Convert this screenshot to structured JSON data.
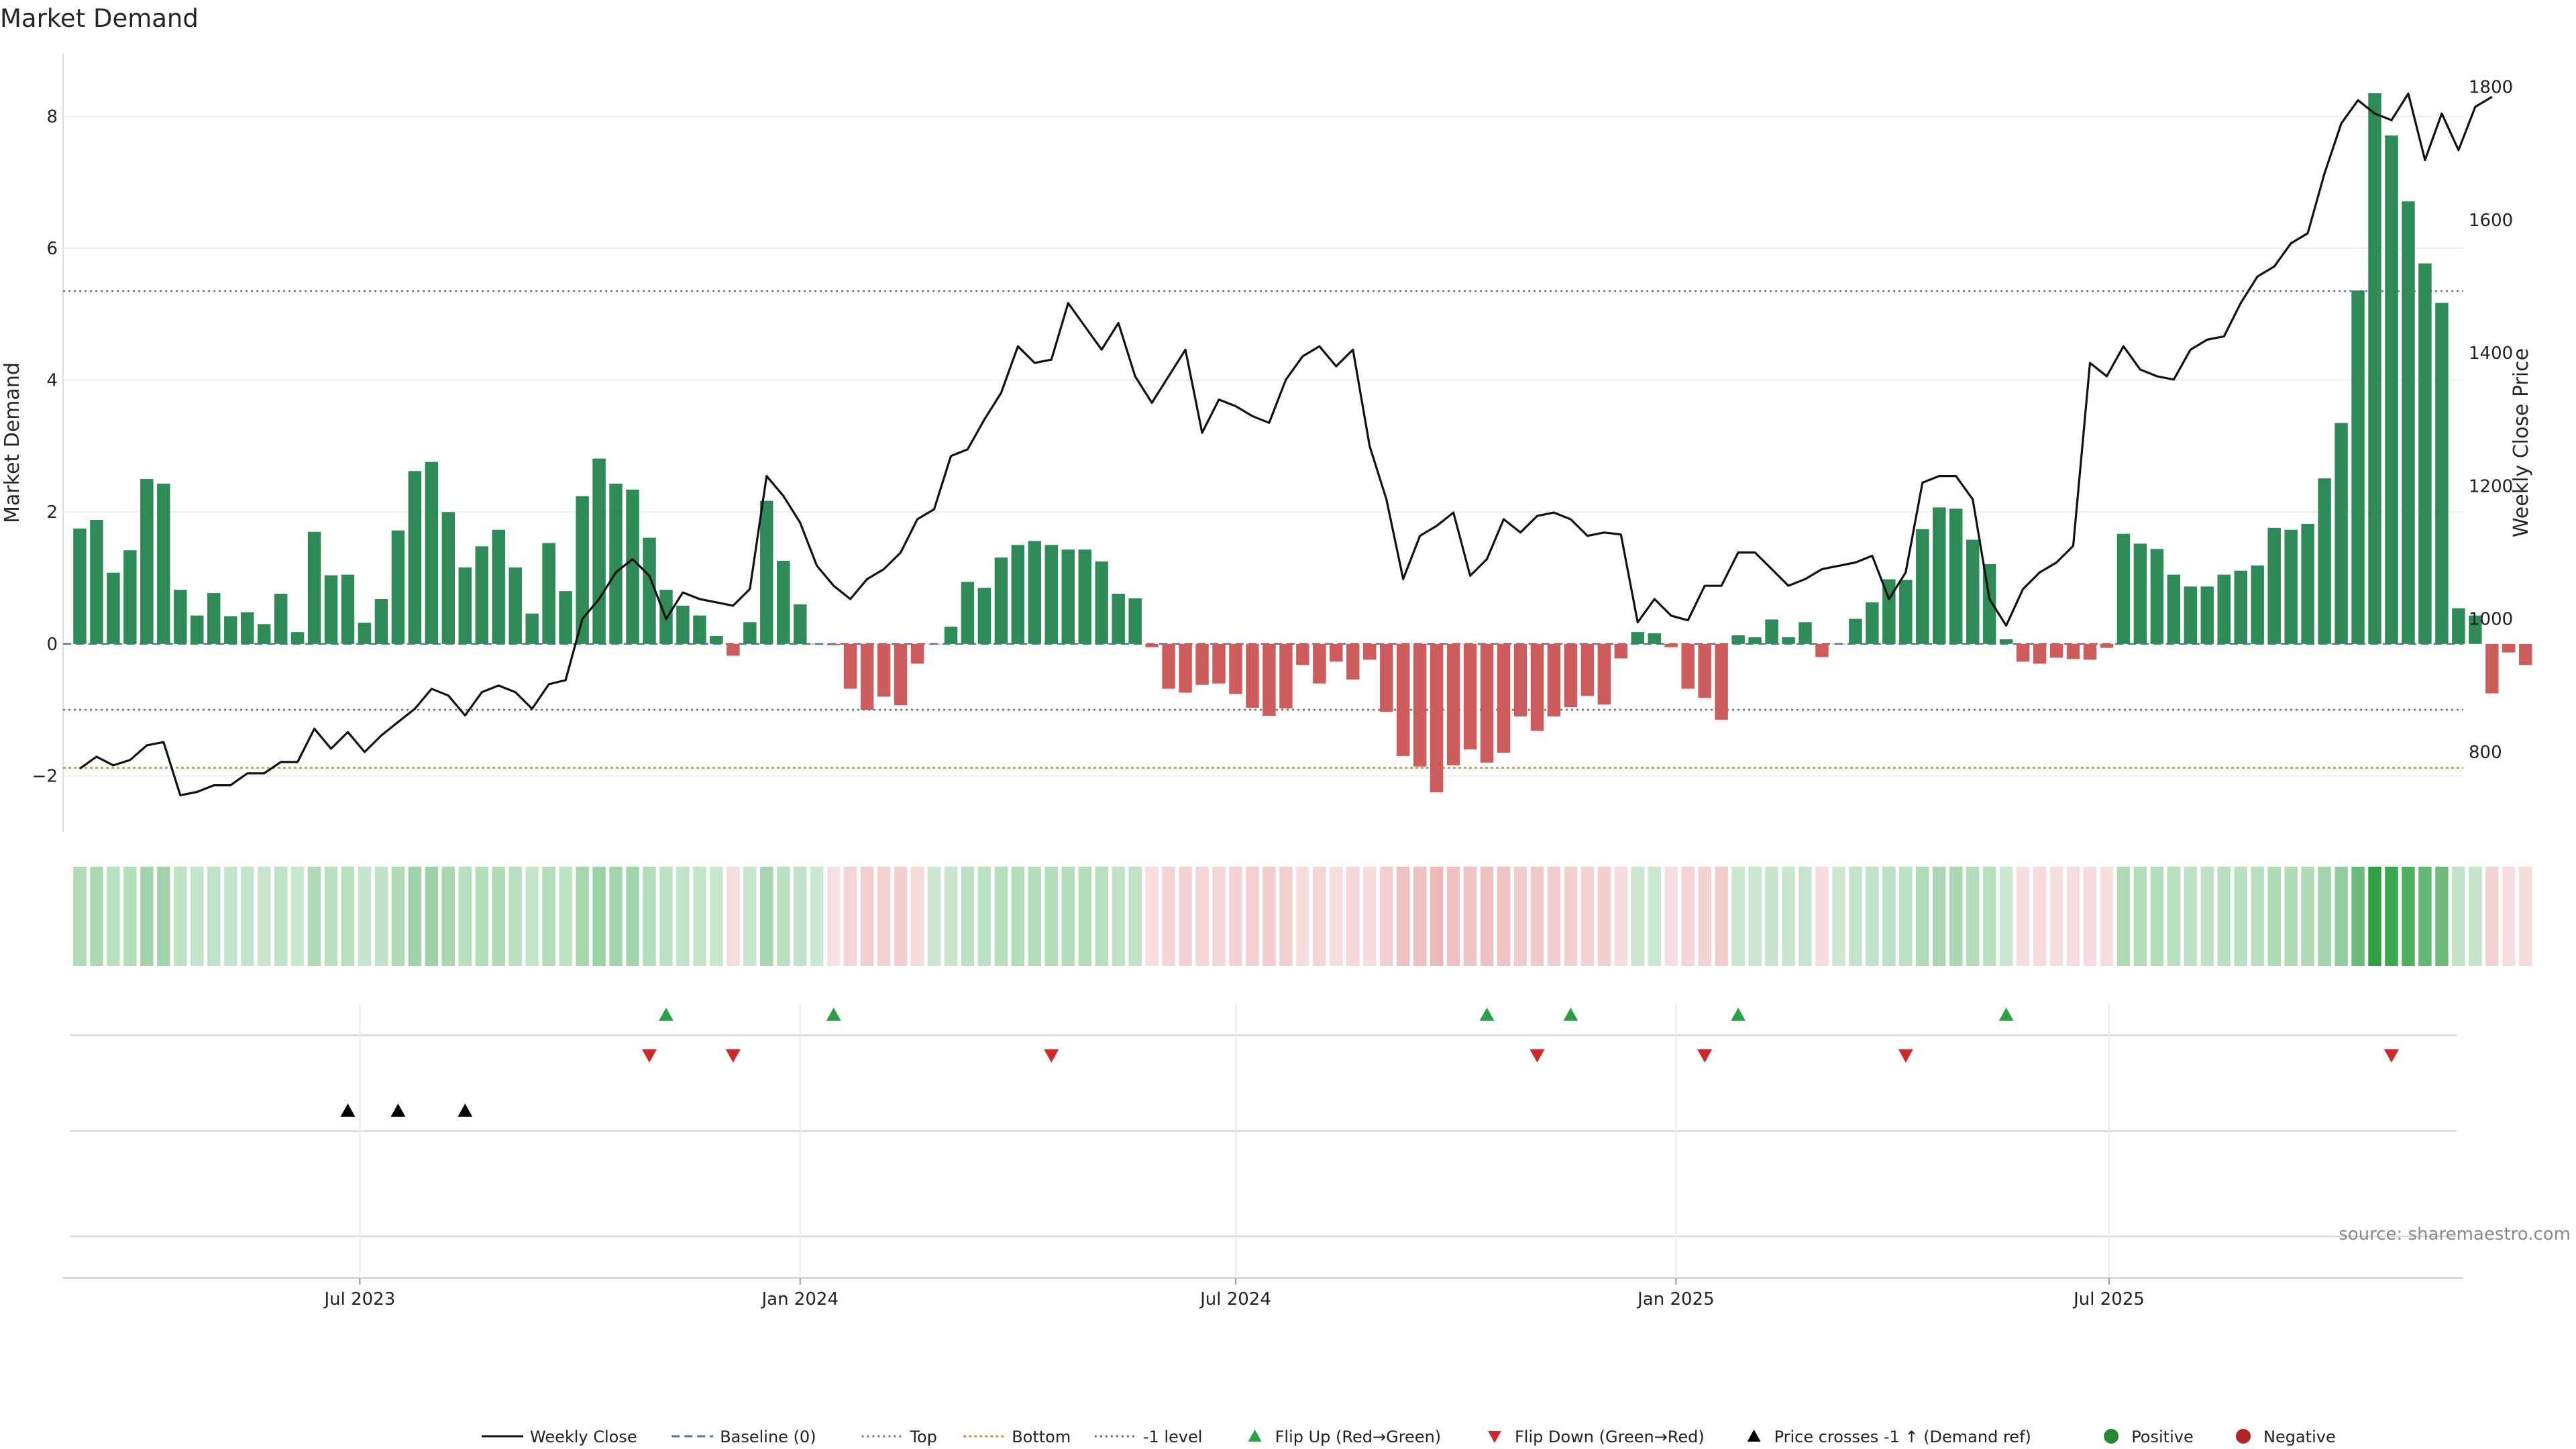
{
  "title": "Market Demand",
  "source": "source: sharemaestro.com",
  "chart_data": {
    "type": "bar",
    "ylabel": "Market Demand",
    "y2label": "Weekly Close Price",
    "ylim": [
      -2.85,
      8.95
    ],
    "y2lim": [
      680,
      1850
    ],
    "yticks": [
      -2,
      0,
      2,
      4,
      6,
      8
    ],
    "ytick_labels": [
      "−2",
      "0",
      "2",
      "4",
      "6",
      "8"
    ],
    "y2ticks": [
      800,
      1000,
      1200,
      1400,
      1600,
      1800
    ],
    "xlim": [
      "2023-02-27",
      "2025-11-26"
    ],
    "x_ticks": [
      {
        "date": "2023-07-01",
        "label": "Jul 2023"
      },
      {
        "date": "2024-01-01",
        "label": "Jan 2024"
      },
      {
        "date": "2024-07-01",
        "label": "Jul 2024"
      },
      {
        "date": "2025-01-01",
        "label": "Jan 2025"
      },
      {
        "date": "2025-07-01",
        "label": "Jul 2025"
      }
    ],
    "levels": {
      "top": 5.35,
      "bottom": -1.88,
      "minus_one": -1.0,
      "baseline": 0
    },
    "start_date": "2023-03-06",
    "demand": [
      1.75,
      1.88,
      1.08,
      1.42,
      2.5,
      2.43,
      0.82,
      0.43,
      0.77,
      0.42,
      0.48,
      0.3,
      0.76,
      0.18,
      1.7,
      1.04,
      1.05,
      0.32,
      0.68,
      1.72,
      2.62,
      2.76,
      2.0,
      1.16,
      1.48,
      1.73,
      1.16,
      0.46,
      1.53,
      0.8,
      2.24,
      2.81,
      2.43,
      2.34,
      1.61,
      0.82,
      0.58,
      0.43,
      0.12,
      -0.18,
      0.33,
      2.17,
      1.26,
      0.6,
      0.0,
      -0.02,
      -0.68,
      -1.0,
      -0.8,
      -0.93,
      -0.3,
      0.0,
      0.26,
      0.94,
      0.85,
      1.31,
      1.5,
      1.56,
      1.5,
      1.43,
      1.43,
      1.25,
      0.76,
      0.69,
      -0.05,
      -0.68,
      -0.74,
      -0.62,
      -0.6,
      -0.76,
      -0.97,
      -1.09,
      -0.98,
      -0.32,
      -0.6,
      -0.27,
      -0.54,
      -0.24,
      -1.03,
      -1.7,
      -1.86,
      -2.25,
      -1.84,
      -1.6,
      -1.8,
      -1.65,
      -1.1,
      -1.32,
      -1.1,
      -0.96,
      -0.79,
      -0.92,
      -0.22,
      0.18,
      0.16,
      -0.05,
      -0.68,
      -0.82,
      -1.15,
      0.13,
      0.1,
      0.37,
      0.1,
      0.33,
      -0.2,
      0.0,
      0.38,
      0.63,
      0.98,
      0.97,
      1.74,
      2.07,
      2.05,
      1.58,
      1.21,
      0.07,
      -0.27,
      -0.3,
      -0.21,
      -0.23,
      -0.24,
      -0.06,
      1.67,
      1.52,
      1.44,
      1.05,
      0.87,
      0.87,
      1.05,
      1.11,
      1.19,
      1.76,
      1.73,
      1.82,
      2.51,
      3.35,
      5.36,
      8.35,
      7.71,
      6.71,
      5.77,
      5.17,
      0.54,
      0.43,
      -0.75,
      -0.13,
      -0.32
    ],
    "close": [
      775,
      793,
      780,
      788,
      810,
      815,
      735,
      740,
      750,
      750,
      768,
      768,
      785,
      785,
      835,
      805,
      830,
      800,
      825,
      845,
      865,
      895,
      885,
      855,
      890,
      900,
      890,
      865,
      902,
      908,
      1000,
      1030,
      1070,
      1090,
      1065,
      1000,
      1040,
      1030,
      1025,
      1020,
      1045,
      1215,
      1185,
      1145,
      1080,
      1050,
      1030,
      1060,
      1075,
      1100,
      1150,
      1165,
      1245,
      1255,
      1300,
      1340,
      1410,
      1385,
      1390,
      1475,
      1440,
      1405,
      1445,
      1365,
      1325,
      1365,
      1405,
      1280,
      1330,
      1320,
      1305,
      1295,
      1360,
      1395,
      1410,
      1380,
      1405,
      1260,
      1180,
      1060,
      1125,
      1140,
      1160,
      1065,
      1090,
      1150,
      1130,
      1155,
      1160,
      1150,
      1125,
      1130,
      1127,
      995,
      1030,
      1005,
      998,
      1050,
      1050,
      1100,
      1100,
      1075,
      1050,
      1060,
      1075,
      1080,
      1085,
      1095,
      1030,
      1070,
      1205,
      1215,
      1215,
      1180,
      1030,
      990,
      1045,
      1070,
      1085,
      1110,
      1385,
      1365,
      1410,
      1375,
      1365,
      1360,
      1405,
      1420,
      1425,
      1475,
      1515,
      1530,
      1565,
      1580,
      1670,
      1745,
      1780,
      1760,
      1750,
      1790,
      1690,
      1760,
      1705,
      1770,
      1785
    ],
    "flip_up_dates": [
      "2023-11-06",
      "2024-01-15",
      "2024-10-14",
      "2024-11-18",
      "2025-01-27",
      "2025-05-19"
    ],
    "flip_down_dates": [
      "2023-10-30",
      "2023-12-04",
      "2024-04-15",
      "2024-11-04",
      "2025-01-13",
      "2025-04-07",
      "2025-10-27"
    ],
    "price_cross_dates": [
      "2023-06-26",
      "2023-07-17",
      "2023-08-14"
    ],
    "legend": [
      {
        "label": "Weekly Close",
        "kind": "line",
        "color": "#111111",
        "dash": ""
      },
      {
        "label": "Baseline (0)",
        "kind": "line",
        "color": "#4c78a8",
        "dash": "12,7"
      },
      {
        "label": "Top",
        "kind": "line",
        "color": "#7a7a92",
        "dash": "3,5"
      },
      {
        "label": "Bottom",
        "kind": "line",
        "color": "#d4902c",
        "dash": "4,4"
      },
      {
        "label": "-1 level",
        "kind": "line",
        "color": "#666677",
        "dash": "3,5"
      },
      {
        "label": "Flip Up (Red→Green)",
        "kind": "tri-up",
        "color": "#2ca048"
      },
      {
        "label": "Flip Down (Green→Red)",
        "kind": "tri-down",
        "color": "#cc2a2a"
      },
      {
        "label": "Price crosses -1 ↑ (Demand ref)",
        "kind": "tri-up",
        "color": "#000000"
      },
      {
        "label": "Positive",
        "kind": "dot",
        "color": "#23882f"
      },
      {
        "label": "Negative",
        "kind": "dot",
        "color": "#b02424"
      }
    ],
    "colors": {
      "positive_bar": "#2e8b57",
      "negative_bar": "#cd5c5c",
      "close_line": "#111111",
      "heat_green": "#2ea043",
      "heat_red": "#e8a7a7"
    }
  }
}
